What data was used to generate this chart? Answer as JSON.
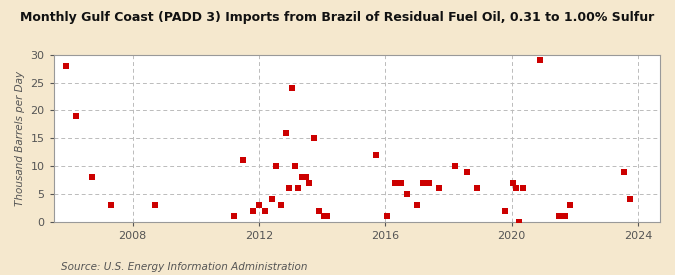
{
  "title": "Monthly Gulf Coast (PADD 3) Imports from Brazil of Residual Fuel Oil, 0.31 to 1.00% Sulfur",
  "ylabel": "Thousand Barrels per Day",
  "source": "Source: U.S. Energy Information Administration",
  "background_color": "#f5e8ce",
  "plot_bg_color": "#ffffff",
  "marker_color": "#cc0000",
  "ylim": [
    0,
    30
  ],
  "yticks": [
    0,
    5,
    10,
    15,
    20,
    25,
    30
  ],
  "xmin": 2005.5,
  "xmax": 2024.7,
  "xticks": [
    2008,
    2012,
    2016,
    2020,
    2024
  ],
  "data": [
    [
      2005.9,
      28
    ],
    [
      2006.2,
      19
    ],
    [
      2006.7,
      8
    ],
    [
      2007.3,
      3
    ],
    [
      2008.7,
      3
    ],
    [
      2011.2,
      1
    ],
    [
      2011.5,
      11
    ],
    [
      2011.8,
      2
    ],
    [
      2012.0,
      3
    ],
    [
      2012.2,
      2
    ],
    [
      2012.4,
      4
    ],
    [
      2012.55,
      10
    ],
    [
      2012.7,
      3
    ],
    [
      2012.85,
      16
    ],
    [
      2012.95,
      6
    ],
    [
      2013.05,
      24
    ],
    [
      2013.15,
      10
    ],
    [
      2013.25,
      6
    ],
    [
      2013.35,
      8
    ],
    [
      2013.5,
      8
    ],
    [
      2013.6,
      7
    ],
    [
      2013.75,
      15
    ],
    [
      2013.9,
      2
    ],
    [
      2014.05,
      1
    ],
    [
      2014.15,
      1
    ],
    [
      2015.7,
      12
    ],
    [
      2016.05,
      1
    ],
    [
      2016.3,
      7
    ],
    [
      2016.5,
      7
    ],
    [
      2016.7,
      5
    ],
    [
      2017.0,
      3
    ],
    [
      2017.2,
      7
    ],
    [
      2017.4,
      7
    ],
    [
      2017.7,
      6
    ],
    [
      2018.2,
      10
    ],
    [
      2018.6,
      9
    ],
    [
      2018.9,
      6
    ],
    [
      2019.8,
      2
    ],
    [
      2020.05,
      7
    ],
    [
      2020.15,
      6
    ],
    [
      2020.25,
      0
    ],
    [
      2020.35,
      6
    ],
    [
      2020.9,
      29
    ],
    [
      2021.5,
      1
    ],
    [
      2021.7,
      1
    ],
    [
      2021.85,
      3
    ],
    [
      2023.55,
      9
    ],
    [
      2023.75,
      4
    ]
  ]
}
